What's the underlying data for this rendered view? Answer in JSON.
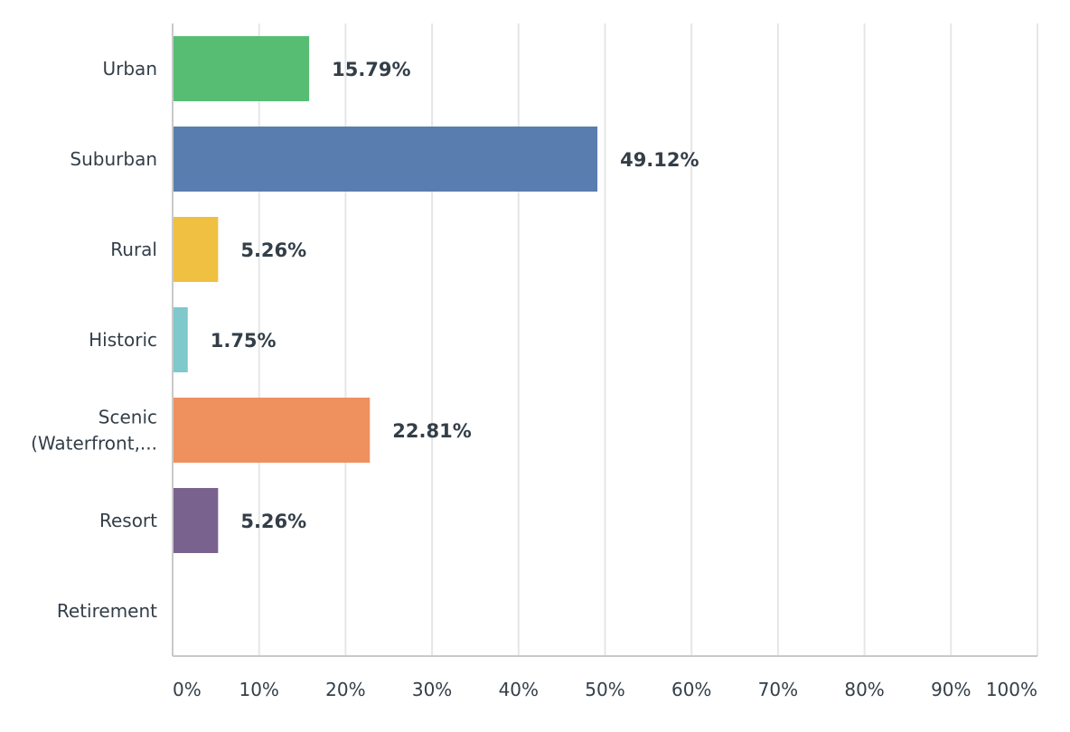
{
  "chart_data": {
    "type": "bar",
    "orientation": "horizontal",
    "categories": [
      [
        "Urban"
      ],
      [
        "Suburban"
      ],
      [
        "Rural"
      ],
      [
        "Historic"
      ],
      [
        "Scenic",
        "(Waterfront,..."
      ],
      [
        "Resort"
      ],
      [
        "Retirement"
      ]
    ],
    "values": [
      15.79,
      49.12,
      5.26,
      1.75,
      22.81,
      5.26,
      0
    ],
    "value_labels": [
      "15.79%",
      "49.12%",
      "5.26%",
      "1.75%",
      "22.81%",
      "5.26%",
      ""
    ],
    "colors": [
      "#57bd73",
      "#5a7db0",
      "#f0c043",
      "#7fc8cc",
      "#ef915e",
      "#7a628f",
      "#cccccc"
    ],
    "xlim": [
      0,
      100
    ],
    "xticks": [
      0,
      10,
      20,
      30,
      40,
      50,
      60,
      70,
      80,
      90,
      100
    ],
    "xtick_labels": [
      "0%",
      "10%",
      "20%",
      "30%",
      "40%",
      "50%",
      "60%",
      "70%",
      "80%",
      "90%",
      "100%"
    ],
    "grid": true,
    "title": "",
    "xlabel": "",
    "ylabel": ""
  }
}
